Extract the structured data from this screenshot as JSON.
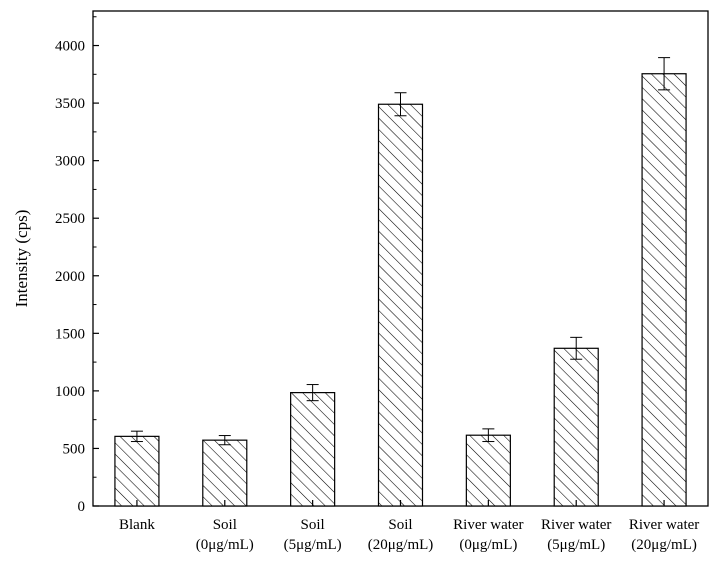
{
  "chart_data": {
    "type": "bar",
    "title": "",
    "xlabel": "",
    "ylabel": "Intensity (cps)",
    "ylim": [
      0,
      4300
    ],
    "yticks": [
      0,
      500,
      1000,
      1500,
      2000,
      2500,
      3000,
      3500,
      4000
    ],
    "grid": false,
    "bar_fill": "hatched",
    "bar_color": "#000000",
    "categories": [
      {
        "line1": "Blank",
        "line2": ""
      },
      {
        "line1": "Soil",
        "line2": "(0μg/mL)"
      },
      {
        "line1": "Soil",
        "line2": "(5μg/mL)"
      },
      {
        "line1": "Soil",
        "line2": "(20μg/mL)"
      },
      {
        "line1": "River water",
        "line2": "(0μg/mL)"
      },
      {
        "line1": "River water",
        "line2": "(5μg/mL)"
      },
      {
        "line1": "River water",
        "line2": "(20μg/mL)"
      }
    ],
    "values": [
      605,
      572,
      985,
      3490,
      615,
      1370,
      3755
    ],
    "errors": [
      45,
      40,
      70,
      100,
      55,
      95,
      140
    ]
  }
}
